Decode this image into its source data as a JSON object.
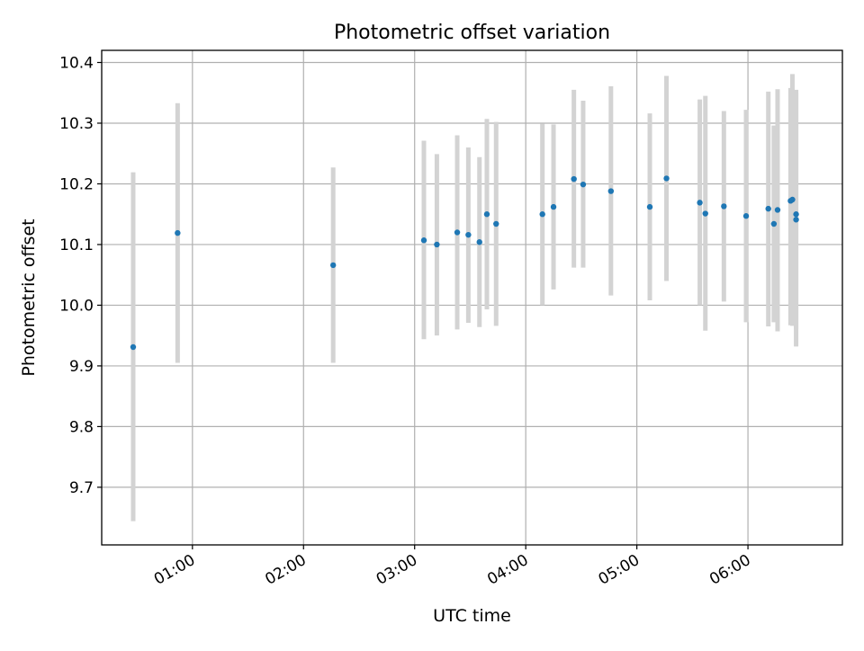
{
  "chart_data": {
    "type": "scatter",
    "title": "Photometric offset variation",
    "xlabel": "UTC time",
    "ylabel": "Photometric offset",
    "x_axis": {
      "kind": "time",
      "range": [
        "00:11",
        "06:51"
      ],
      "ticks": [
        "01:00",
        "02:00",
        "03:00",
        "04:00",
        "05:00",
        "06:00"
      ]
    },
    "y_axis": {
      "range": [
        9.605,
        10.42
      ],
      "ticks": [
        "9.7",
        "9.8",
        "9.9",
        "10.0",
        "10.1",
        "10.2",
        "10.3",
        "10.4"
      ]
    },
    "grid": true,
    "errorbar_color": "#d3d3d3",
    "point_color": "#1f77b4",
    "points": [
      {
        "x": "00:28",
        "y": 9.931,
        "lo": 9.644,
        "hi": 10.219
      },
      {
        "x": "00:52",
        "y": 10.119,
        "lo": 9.905,
        "hi": 10.333
      },
      {
        "x": "02:16",
        "y": 10.066,
        "lo": 9.905,
        "hi": 10.227
      },
      {
        "x": "03:05",
        "y": 10.107,
        "lo": 9.944,
        "hi": 10.271
      },
      {
        "x": "03:12",
        "y": 10.1,
        "lo": 9.95,
        "hi": 10.249
      },
      {
        "x": "03:23",
        "y": 10.12,
        "lo": 9.96,
        "hi": 10.28
      },
      {
        "x": "03:29",
        "y": 10.116,
        "lo": 9.971,
        "hi": 10.26
      },
      {
        "x": "03:35",
        "y": 10.104,
        "lo": 9.964,
        "hi": 10.244
      },
      {
        "x": "03:39",
        "y": 10.15,
        "lo": 9.993,
        "hi": 10.307
      },
      {
        "x": "03:44",
        "y": 10.134,
        "lo": 9.966,
        "hi": 10.302
      },
      {
        "x": "04:09",
        "y": 10.15,
        "lo": 10.0,
        "hi": 10.299
      },
      {
        "x": "04:15",
        "y": 10.162,
        "lo": 10.026,
        "hi": 10.298
      },
      {
        "x": "04:26",
        "y": 10.208,
        "lo": 10.062,
        "hi": 10.355
      },
      {
        "x": "04:31",
        "y": 10.199,
        "lo": 10.062,
        "hi": 10.337
      },
      {
        "x": "04:46",
        "y": 10.188,
        "lo": 10.016,
        "hi": 10.361
      },
      {
        "x": "05:07",
        "y": 10.162,
        "lo": 10.008,
        "hi": 10.316
      },
      {
        "x": "05:16",
        "y": 10.209,
        "lo": 10.04,
        "hi": 10.378
      },
      {
        "x": "05:34",
        "y": 10.169,
        "lo": 10.0,
        "hi": 10.339
      },
      {
        "x": "05:37",
        "y": 10.151,
        "lo": 9.958,
        "hi": 10.345
      },
      {
        "x": "05:47",
        "y": 10.163,
        "lo": 10.006,
        "hi": 10.32
      },
      {
        "x": "05:59",
        "y": 10.147,
        "lo": 9.972,
        "hi": 10.322
      },
      {
        "x": "06:11",
        "y": 10.159,
        "lo": 9.965,
        "hi": 10.352
      },
      {
        "x": "06:14",
        "y": 10.134,
        "lo": 9.972,
        "hi": 10.296
      },
      {
        "x": "06:16",
        "y": 10.157,
        "lo": 9.957,
        "hi": 10.356
      },
      {
        "x": "06:23",
        "y": 10.172,
        "lo": 9.967,
        "hi": 10.358
      },
      {
        "x": "06:24",
        "y": 10.174,
        "lo": 9.966,
        "hi": 10.381
      },
      {
        "x": "06:26",
        "y": 10.15,
        "lo": 9.96,
        "hi": 10.355
      },
      {
        "x": "06:26",
        "y": 10.141,
        "lo": 9.932,
        "hi": 10.35
      }
    ]
  }
}
